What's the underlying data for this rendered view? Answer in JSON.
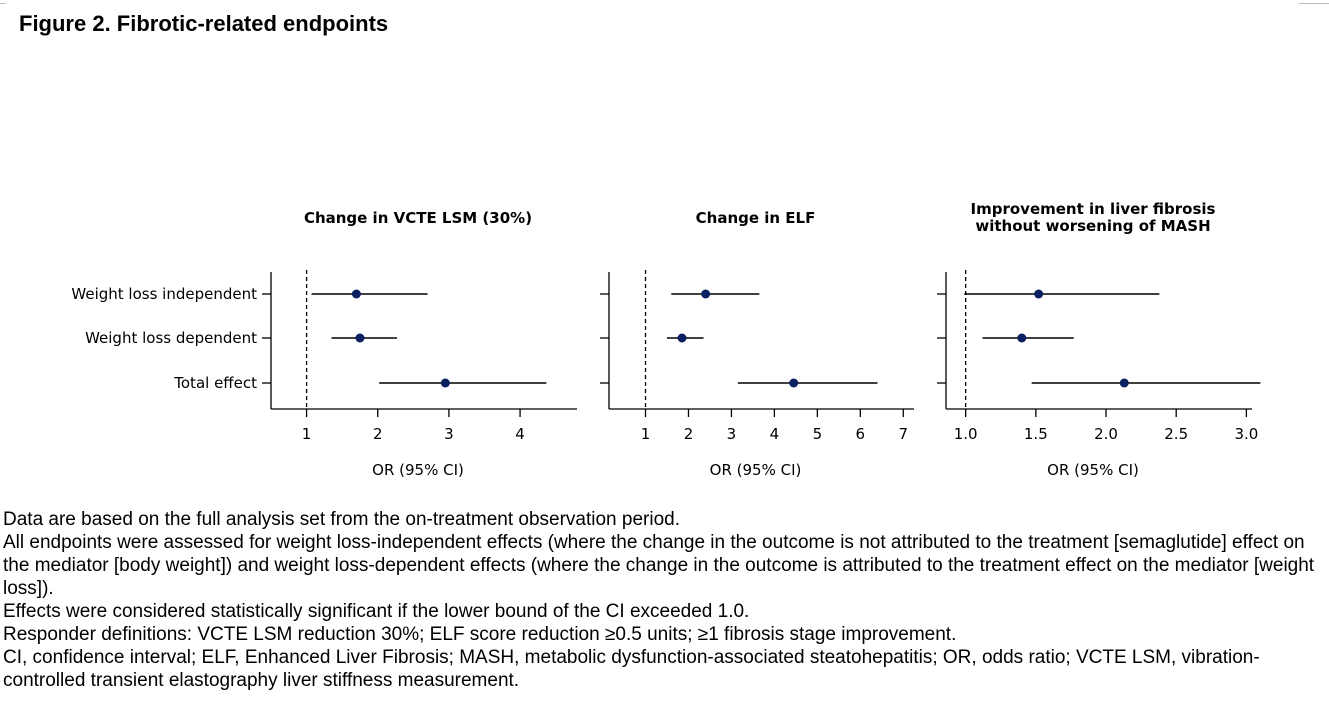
{
  "figure_title": "Figure 2. Fibrotic-related endpoints",
  "chart_data": [
    {
      "type": "forest",
      "title": "Change in VCTE LSM (30%)",
      "xlabel": "OR (95% CI)",
      "reference_line": 1,
      "xlim": [
        0.5,
        4.8
      ],
      "xticks": [
        1,
        2,
        3,
        4
      ],
      "categories": [
        "Weight loss independent",
        "Weight loss dependent",
        "Total effect"
      ],
      "estimate": [
        1.7,
        1.75,
        2.95
      ],
      "ci_lower": [
        1.07,
        1.35,
        2.02
      ],
      "ci_upper": [
        2.7,
        2.27,
        4.37
      ]
    },
    {
      "type": "forest",
      "title": "Change in ELF",
      "xlabel": "OR (95% CI)",
      "reference_line": 1,
      "xlim": [
        0.15,
        7.25
      ],
      "xticks": [
        1,
        2,
        3,
        4,
        5,
        6,
        7
      ],
      "categories": [
        "Weight loss independent",
        "Weight loss dependent",
        "Total effect"
      ],
      "estimate": [
        2.4,
        1.85,
        4.45
      ],
      "ci_lower": [
        1.6,
        1.5,
        3.15
      ],
      "ci_upper": [
        3.65,
        2.35,
        6.4
      ]
    },
    {
      "type": "forest",
      "title": "Improvement in liver fibrosis without worsening of MASH",
      "title_lines": [
        "Improvement in liver fibrosis",
        "without worsening of MASH"
      ],
      "xlabel": "OR (95% CI)",
      "reference_line": 1.0,
      "xlim": [
        0.86,
        3.04
      ],
      "xticks": [
        "1.0",
        "1.5",
        "2.0",
        "2.5",
        "3.0"
      ],
      "categories": [
        "Weight loss independent",
        "Weight loss dependent",
        "Total effect"
      ],
      "estimate": [
        1.52,
        1.4,
        2.13
      ],
      "ci_lower": [
        0.99,
        1.12,
        1.47
      ],
      "ci_upper": [
        2.38,
        1.77,
        3.1
      ]
    }
  ],
  "notes": [
    "Data are based on the full analysis set from the on-treatment observation period.",
    "All endpoints were assessed for weight loss-independent effects (where the change in the outcome is not attributed to the treatment [semaglutide] effect on the mediator [body weight]) and weight loss-dependent effects (where the change in the outcome is attributed to the treatment effect on the mediator [weight loss]).",
    "Effects were considered statistically significant if the lower bound of the CI exceeded 1.0.",
    "Responder definitions: VCTE LSM reduction 30%; ELF score reduction ≥0.5 units; ≥1 fibrosis stage improvement.",
    "CI, confidence interval; ELF, Enhanced Liver Fibrosis; MASH, metabolic dysfunction-associated steatohepatitis; OR, odds ratio; VCTE LSM, vibration-controlled transient elastography liver stiffness measurement."
  ],
  "colors": {
    "point": "#0b2060",
    "line": "#000000",
    "text": "#000000"
  }
}
